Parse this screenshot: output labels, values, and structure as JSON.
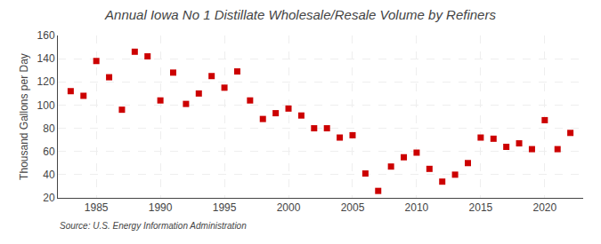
{
  "chart_data": {
    "type": "scatter",
    "title": "Annual Iowa No 1 Distillate Wholesale/Resale Volume by Refiners",
    "ylabel": "Thousand Gallons per Day",
    "annotations": [
      "Source: U.S. Energy Information Administration"
    ],
    "color": "#cc0000",
    "marker": "square",
    "grid": true,
    "xlim": [
      1982,
      2023
    ],
    "xticks": [
      1985,
      1990,
      1995,
      2000,
      2005,
      2010,
      2015,
      2020
    ],
    "ylim": [
      20,
      160
    ],
    "yticks": [
      20,
      40,
      60,
      80,
      100,
      120,
      140,
      160
    ],
    "x": [
      1983,
      1984,
      1985,
      1986,
      1987,
      1988,
      1989,
      1990,
      1991,
      1992,
      1993,
      1994,
      1995,
      1996,
      1997,
      1998,
      1999,
      2000,
      2001,
      2002,
      2003,
      2004,
      2005,
      2006,
      2007,
      2008,
      2009,
      2010,
      2011,
      2012,
      2013,
      2014,
      2015,
      2016,
      2017,
      2018,
      2019,
      2020,
      2021,
      2022
    ],
    "values": [
      112,
      108,
      138,
      124,
      96,
      146,
      142,
      104,
      128,
      101,
      110,
      125,
      115,
      129,
      104,
      88,
      93,
      97,
      91,
      80,
      80,
      72,
      74,
      41,
      26,
      47,
      55,
      59,
      45,
      34,
      40,
      50,
      72,
      71,
      64,
      67,
      62,
      87,
      62,
      76
    ]
  }
}
